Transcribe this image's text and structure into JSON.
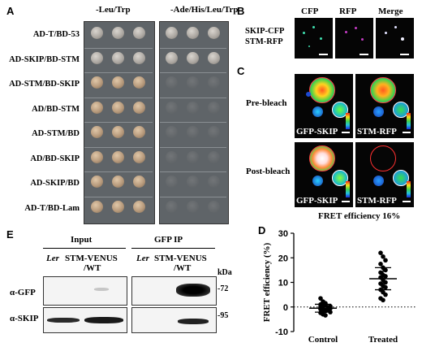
{
  "panels": {
    "A": {
      "letter": "A",
      "col_headers": [
        "-Leu/Trp",
        "-Ade/His/Leu/Trp"
      ],
      "rows": [
        "AD-T/BD-53",
        "AD-SKIP/BD-STM",
        "AD-STM/BD-SKIP",
        "AD/BD-STM",
        "AD-STM/BD",
        "AD/BD-SKIP",
        "AD-SKIP/BD",
        "AD-T/BD-Lam"
      ]
    },
    "B": {
      "letter": "B",
      "col_headers": [
        "CFP",
        "RFP",
        "Merge"
      ],
      "row_label_1": "SKIP-CFP",
      "row_label_2": "STM-RFP"
    },
    "C": {
      "letter": "C",
      "row_labels": [
        "Pre-bleach",
        "Post-bleach"
      ],
      "img_labels": [
        "GFP-SKIP",
        "STM-RFP"
      ],
      "caption": "FRET efficiency 16%"
    },
    "E": {
      "letter": "E",
      "group_input": "Input",
      "group_ip": "GFP IP",
      "lane_ler": "Ler",
      "lane_stm_1": "STM-VENUS",
      "lane_stm_2": "/WT",
      "kda": "kDa",
      "blot_labels": [
        "α-GFP",
        "α-SKIP"
      ],
      "markers": [
        "-72",
        "-95"
      ]
    },
    "D": {
      "letter": "D"
    }
  },
  "chart_data": {
    "type": "scatter",
    "ylabel": "FRET efficiency (%)",
    "ylim": [
      -10,
      30
    ],
    "yticks": [
      "30",
      "20",
      "10",
      "0",
      "-10"
    ],
    "categories": [
      "Control",
      "Treated"
    ],
    "baseline": 0,
    "series": [
      {
        "category": "Control",
        "mean": -0.5,
        "sd": 1.6,
        "values": [
          3.5,
          2.2,
          1.5,
          1.0,
          0.6,
          0.3,
          0.0,
          -0.3,
          -0.6,
          -0.9,
          -1.2,
          -1.4,
          -1.6,
          -1.9,
          -2.1,
          -2.4,
          -3.0,
          -3.4,
          0.8,
          -0.1
        ]
      },
      {
        "category": "Treated",
        "mean": 11.5,
        "sd": 4.5,
        "values": [
          22,
          20.5,
          19,
          17.5,
          16,
          15,
          14,
          13,
          12.5,
          12,
          11,
          10,
          9.5,
          8.5,
          8,
          7,
          6,
          5,
          3.5,
          2.8
        ]
      }
    ],
    "marker_color": "#000000"
  }
}
